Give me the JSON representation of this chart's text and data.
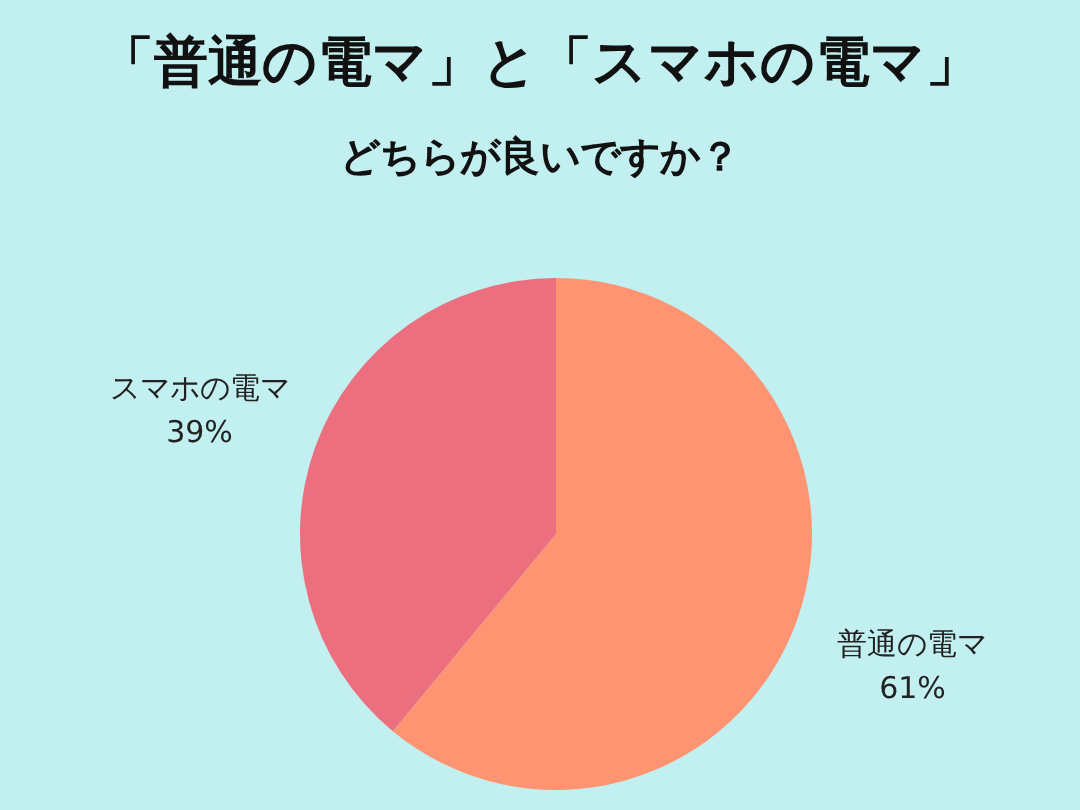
{
  "chart_data": {
    "type": "pie",
    "title": "「普通の電マ」と「スマホの電マ」",
    "subtitle": "どちらが良いですか？",
    "categories": [
      "普通の電マ",
      "スマホの電マ"
    ],
    "values": [
      61,
      39
    ],
    "colors": [
      "#ff9473",
      "#ec6f7f"
    ],
    "value_labels": [
      "61%",
      "39%"
    ]
  }
}
